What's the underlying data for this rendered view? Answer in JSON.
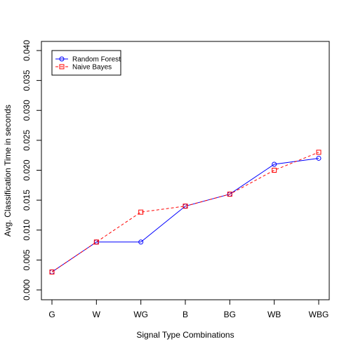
{
  "chart_data": {
    "type": "line",
    "title": "",
    "xlabel": "Signal Type Combinations",
    "ylabel": "Avg. Classification Time in seconds",
    "categories": [
      "G",
      "W",
      "WG",
      "B",
      "BG",
      "WB",
      "WBG"
    ],
    "ylim": [
      0.0,
      0.04
    ],
    "yticks": [
      0.0,
      0.005,
      0.01,
      0.015,
      0.02,
      0.025,
      0.03,
      0.035,
      0.04
    ],
    "ytick_labels": [
      "0.000",
      "0.005",
      "0.010",
      "0.015",
      "0.020",
      "0.025",
      "0.030",
      "0.035",
      "0.040"
    ],
    "grid": false,
    "legend_position": "top-left",
    "series": [
      {
        "name": "Random Forest",
        "values": [
          0.003,
          0.008,
          0.008,
          0.014,
          0.016,
          0.021,
          0.022
        ],
        "color": "#0000ff",
        "marker": "circle",
        "line": "solid"
      },
      {
        "name": "Naive Bayes",
        "values": [
          0.003,
          0.008,
          0.013,
          0.014,
          0.016,
          0.02,
          0.023
        ],
        "color": "#ff0000",
        "marker": "square",
        "line": "dashed"
      }
    ]
  }
}
